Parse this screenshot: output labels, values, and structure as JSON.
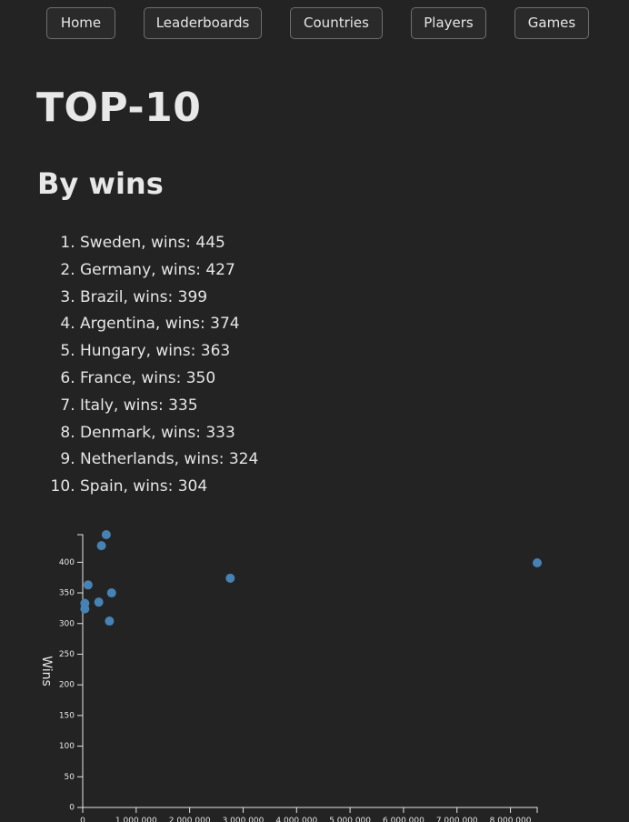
{
  "nav": {
    "items": [
      {
        "label": "Home"
      },
      {
        "label": "Leaderboards"
      },
      {
        "label": "Countries"
      },
      {
        "label": "Players"
      },
      {
        "label": "Games"
      }
    ]
  },
  "page": {
    "title": "TOP-10",
    "subtitle": "By wins"
  },
  "ranking": [
    {
      "text": "Sweden, wins: 445"
    },
    {
      "text": "Germany, wins: 427"
    },
    {
      "text": "Brazil, wins: 399"
    },
    {
      "text": "Argentina, wins: 374"
    },
    {
      "text": "Hungary, wins: 363"
    },
    {
      "text": "France, wins: 350"
    },
    {
      "text": "Italy, wins: 335"
    },
    {
      "text": "Denmark, wins: 333"
    },
    {
      "text": "Netherlands, wins: 324"
    },
    {
      "text": "Spain, wins: 304"
    }
  ],
  "chart_data": {
    "type": "scatter",
    "title": "",
    "xlabel": "",
    "ylabel": "Wins",
    "xlim": [
      0,
      8500000
    ],
    "ylim": [
      0,
      445
    ],
    "x_ticks": [
      "0",
      "1 000 000",
      "2 000 000",
      "3 000 000",
      "4 000 000",
      "5 000 000",
      "6 000 000",
      "7 000 000",
      "8 000 000"
    ],
    "y_ticks": [
      "0",
      "50",
      "100",
      "150",
      "200",
      "250",
      "300",
      "350",
      "400"
    ],
    "x_tick_values": [
      0,
      1000000,
      2000000,
      3000000,
      4000000,
      5000000,
      6000000,
      7000000,
      8000000
    ],
    "y_tick_values": [
      0,
      50,
      100,
      150,
      200,
      250,
      300,
      350,
      400
    ],
    "points": [
      {
        "x": 440000,
        "y": 445
      },
      {
        "x": 350000,
        "y": 427
      },
      {
        "x": 8500000,
        "y": 399
      },
      {
        "x": 2760000,
        "y": 374
      },
      {
        "x": 100000,
        "y": 363
      },
      {
        "x": 540000,
        "y": 350
      },
      {
        "x": 300000,
        "y": 335
      },
      {
        "x": 40000,
        "y": 333
      },
      {
        "x": 40000,
        "y": 324
      },
      {
        "x": 500000,
        "y": 304
      }
    ],
    "point_color": "#4682b4",
    "axis_color": "#e6e6e6"
  }
}
